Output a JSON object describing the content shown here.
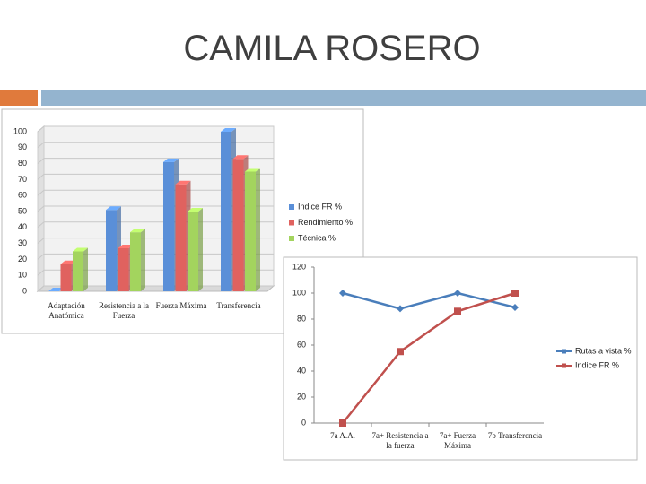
{
  "title": "CAMILA ROSERO",
  "chart_data": [
    {
      "type": "bar3d",
      "categories": [
        "Adaptación Anatómica",
        "Resistencia a la Fuerza",
        "Fuerza Máxima",
        "Transferencia"
      ],
      "series": [
        {
          "name": "Indice FR %",
          "color": "#5a8fd8",
          "values": [
            0,
            51,
            81,
            100
          ]
        },
        {
          "name": "Rendimiento %",
          "color": "#e0625f",
          "values": [
            17,
            27,
            67,
            83
          ]
        },
        {
          "name": "Técnica %",
          "color": "#a3d45e",
          "values": [
            25,
            37,
            50,
            75
          ]
        }
      ],
      "ylim": [
        0,
        100
      ],
      "yticks": [
        0,
        10,
        20,
        30,
        40,
        50,
        60,
        70,
        80,
        90,
        100
      ],
      "grid": true,
      "legend": "right"
    },
    {
      "type": "line",
      "categories": [
        "7a A.A.",
        "7a+ Resistencia a la fuerza",
        "7a+ Fuerza Máxima",
        "7b Transferencia"
      ],
      "series": [
        {
          "name": "Rutas a vista %",
          "color": "#4a7ebb",
          "marker": "diamond",
          "values": [
            100,
            88,
            100,
            89
          ]
        },
        {
          "name": "Indice FR %",
          "color": "#c0504d",
          "marker": "square",
          "values": [
            0,
            55,
            86,
            100
          ]
        }
      ],
      "ylim": [
        0,
        120
      ],
      "yticks": [
        0,
        20,
        40,
        60,
        80,
        100,
        120
      ],
      "grid": false,
      "legend": "right"
    }
  ]
}
